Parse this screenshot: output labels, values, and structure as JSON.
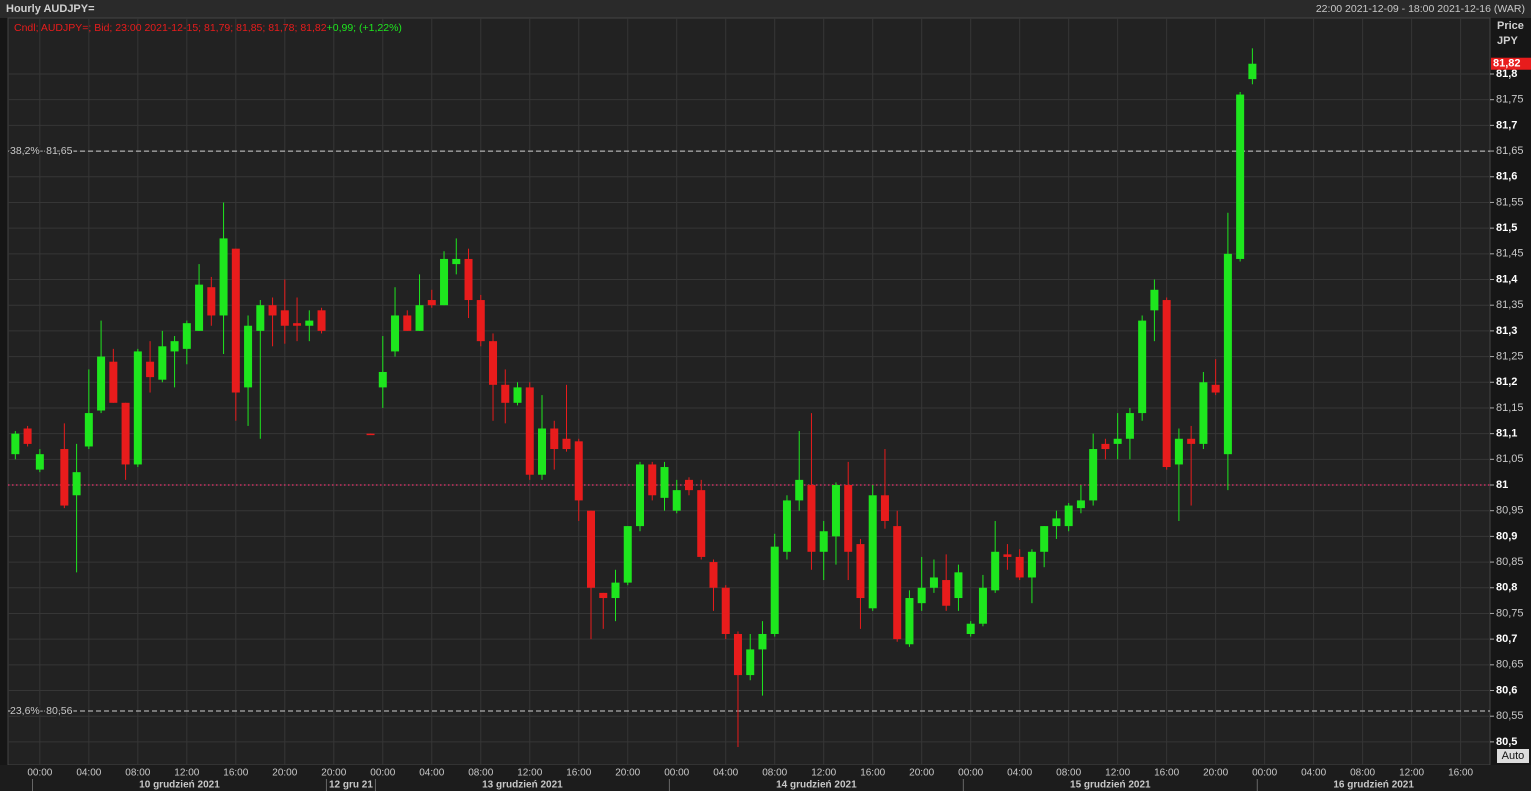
{
  "header": {
    "title": "Hourly AUDJPY=",
    "range": "22:00 2021-12-09 - 18:00 2021-12-16 (WAR)"
  },
  "chart_data": {
    "type": "candlestick",
    "legend_text": "Cndl; AUDJPY=; Bid; 23:00 2021-12-15; 81,79; 81,85; 81,78; 81,82",
    "change_text": "+0,99; (+1,22%)",
    "y_label": [
      "Price",
      "JPY"
    ],
    "auto_button": "Auto",
    "up_color": "#1ee61e",
    "down_color": "#e81c1c",
    "grid": true,
    "ylim": [
      80.455,
      81.909
    ],
    "yticks": [
      {
        "value": 80.5,
        "label": "80,5"
      },
      {
        "value": 80.55,
        "label": "80,55"
      },
      {
        "value": 80.6,
        "label": "80,6"
      },
      {
        "value": 80.65,
        "label": "80,65"
      },
      {
        "value": 80.7,
        "label": "80,7"
      },
      {
        "value": 80.75,
        "label": "80,75"
      },
      {
        "value": 80.8,
        "label": "80,8"
      },
      {
        "value": 80.85,
        "label": "80,85"
      },
      {
        "value": 80.9,
        "label": "80,9"
      },
      {
        "value": 80.95,
        "label": "80,95"
      },
      81,
      {
        "value": 81.05,
        "label": "81,05"
      },
      {
        "value": 81.1,
        "label": "81,1"
      },
      {
        "value": 81.15,
        "label": "81,15"
      },
      {
        "value": 81.2,
        "label": "81,2"
      },
      {
        "value": 81.25,
        "label": "81,25"
      },
      {
        "value": 81.3,
        "label": "81,3"
      },
      {
        "value": 81.35,
        "label": "81,35"
      },
      {
        "value": 81.4,
        "label": "81,4"
      },
      {
        "value": 81.45,
        "label": "81,45"
      },
      {
        "value": 81.5,
        "label": "81,5"
      },
      {
        "value": 81.55,
        "label": "81,55"
      },
      {
        "value": 81.6,
        "label": "81,6"
      },
      {
        "value": 81.65,
        "label": "81,65"
      },
      {
        "value": 81.7,
        "label": "81,7"
      },
      {
        "value": 81.75,
        "label": "81,75"
      },
      {
        "value": 81.8,
        "label": "81,8"
      }
    ],
    "price_tag": {
      "value": 81.82,
      "label": "81,82",
      "color": "#e81c1c"
    },
    "levels": [
      {
        "value": 81.65,
        "label": "38,2%- 81,65"
      },
      {
        "value": 80.56,
        "label": "23,6%- 80,56"
      }
    ],
    "ref_line": {
      "value": 81,
      "color": "#e8336e"
    },
    "date_labels": [
      "10 grudzień 2021",
      "12 gru 21",
      "13 grudzień 2021",
      "14 grudzień 2021",
      "15 grudzień 2021",
      "16 grudzień 2021"
    ],
    "categories": [
      null,
      null,
      "00:00",
      null,
      null,
      null,
      "04:00",
      null,
      null,
      null,
      "08:00",
      null,
      null,
      null,
      "12:00",
      null,
      null,
      null,
      "16:00",
      null,
      null,
      null,
      "20:00",
      null,
      null,
      null,
      "20:00",
      null,
      null,
      null,
      "00:00",
      null,
      null,
      null,
      "04:00",
      null,
      null,
      null,
      "08:00",
      null,
      null,
      null,
      "12:00",
      null,
      null,
      null,
      "16:00",
      null,
      null,
      null,
      "20:00",
      null,
      null,
      null,
      "00:00",
      null,
      null,
      null,
      "04:00",
      null,
      null,
      null,
      "08:00",
      null,
      null,
      null,
      "12:00",
      null,
      null,
      null,
      "16:00",
      null,
      null,
      null,
      "20:00",
      null,
      null,
      null,
      "00:00",
      null,
      null,
      null,
      "04:00",
      null,
      null,
      null,
      "08:00",
      null,
      null,
      null,
      "12:00",
      null,
      null,
      null,
      "16:00",
      null,
      null,
      null,
      "20:00",
      null,
      null,
      null,
      "00:00",
      null,
      null,
      null,
      "04:00",
      null,
      null,
      null,
      "08:00",
      null,
      null,
      null,
      "12:00",
      null,
      null,
      null,
      "16:00",
      null,
      null
    ],
    "open": [
      81.06,
      81.11,
      81.03,
      null,
      81.07,
      80.98,
      81.075,
      81.145,
      81.24,
      81.16,
      81.04,
      81.24,
      81.205,
      81.26,
      81.265,
      81.3,
      81.385,
      81.33,
      81.46,
      81.19,
      81.3,
      81.35,
      81.34,
      81.315,
      81.31,
      81.34,
      null,
      null,
      null,
      81.1,
      81.19,
      81.26,
      81.33,
      81.3,
      81.36,
      81.35,
      81.43,
      81.44,
      81.36,
      81.28,
      81.195,
      81.16,
      81.19,
      81.02,
      81.11,
      81.09,
      81.085,
      80.95,
      80.79,
      80.78,
      80.81,
      80.92,
      81.04,
      80.975,
      80.95,
      81.01,
      80.99,
      80.85,
      80.8,
      80.71,
      80.63,
      80.68,
      80.71,
      80.87,
      80.97,
      81.0,
      80.87,
      80.9,
      81.0,
      80.885,
      80.76,
      80.98,
      80.92,
      80.69,
      80.77,
      80.8,
      80.815,
      80.78,
      80.71,
      80.73,
      80.795,
      80.865,
      80.86,
      80.82,
      80.87,
      80.92,
      80.92,
      80.955,
      80.97,
      81.08,
      81.08,
      81.09,
      81.14,
      81.34,
      81.36,
      81.04,
      81.09,
      81.08,
      81.195,
      81.06,
      81.44,
      81.79,
      null,
      null,
      null,
      null,
      null,
      null,
      null,
      null,
      null,
      null,
      null,
      null,
      null,
      null,
      null,
      null,
      null,
      null,
      null
    ],
    "high": [
      81.105,
      81.115,
      81.07,
      null,
      81.12,
      81.08,
      81.225,
      81.32,
      81.265,
      81.16,
      81.265,
      81.28,
      81.3,
      81.29,
      81.32,
      81.43,
      81.405,
      81.55,
      81.46,
      81.33,
      81.36,
      81.365,
      81.4,
      81.365,
      81.34,
      81.345,
      null,
      null,
      null,
      81.1,
      81.29,
      81.385,
      81.34,
      81.41,
      81.38,
      81.455,
      81.48,
      81.46,
      81.37,
      81.295,
      81.225,
      81.2,
      81.2,
      81.175,
      81.125,
      81.195,
      81.09,
      80.95,
      80.79,
      80.835,
      80.92,
      81.045,
      81.045,
      81.045,
      81.01,
      81.015,
      81.01,
      80.855,
      80.805,
      80.715,
      80.71,
      80.735,
      80.905,
      80.98,
      81.105,
      81.14,
      80.93,
      81.005,
      81.045,
      80.895,
      81.0,
      81.07,
      80.95,
      80.795,
      80.86,
      80.855,
      80.865,
      80.845,
      80.735,
      80.825,
      80.93,
      80.885,
      80.875,
      80.875,
      80.92,
      80.95,
      80.965,
      81.0,
      81.1,
      81.09,
      81.14,
      81.15,
      81.33,
      81.4,
      81.365,
      81.11,
      81.115,
      81.22,
      81.245,
      81.53,
      81.765,
      81.85,
      null,
      null,
      null,
      null,
      null,
      null,
      null,
      null,
      null,
      null,
      null,
      null,
      null,
      null,
      null,
      null,
      null,
      null,
      null
    ],
    "low": [
      81.05,
      81.075,
      81.025,
      null,
      80.955,
      80.83,
      81.07,
      81.14,
      81.16,
      81.01,
      81.035,
      81.18,
      81.2,
      81.19,
      81.235,
      81.3,
      81.31,
      81.255,
      81.125,
      81.115,
      81.09,
      81.27,
      81.275,
      81.28,
      81.28,
      81.295,
      null,
      null,
      null,
      81.1,
      81.15,
      81.25,
      81.3,
      81.3,
      81.345,
      81.35,
      81.41,
      81.325,
      81.27,
      81.125,
      81.12,
      81.155,
      81.01,
      81.01,
      81.03,
      81.065,
      80.93,
      80.7,
      80.72,
      80.735,
      80.805,
      80.91,
      80.97,
      80.95,
      80.945,
      80.98,
      80.855,
      80.755,
      80.7,
      80.49,
      80.62,
      80.59,
      80.705,
      80.855,
      80.95,
      80.835,
      80.815,
      80.845,
      80.815,
      80.72,
      80.755,
      80.915,
      80.695,
      80.685,
      80.755,
      80.79,
      80.755,
      80.755,
      80.705,
      80.725,
      80.79,
      80.835,
      80.815,
      80.77,
      80.84,
      80.895,
      80.91,
      80.945,
      80.96,
      81.05,
      81.05,
      81.05,
      81.125,
      81.28,
      81.03,
      80.93,
      80.96,
      81.07,
      81.175,
      80.99,
      81.435,
      81.78,
      null,
      null,
      null,
      null,
      null,
      null,
      null,
      null,
      null,
      null,
      null,
      null,
      null,
      null,
      null,
      null,
      null,
      null,
      null
    ],
    "close": [
      81.1,
      81.08,
      81.06,
      null,
      80.96,
      81.025,
      81.14,
      81.25,
      81.16,
      81.04,
      81.26,
      81.21,
      81.27,
      81.28,
      81.315,
      81.39,
      81.33,
      81.48,
      81.18,
      81.31,
      81.35,
      81.33,
      81.31,
      81.31,
      81.32,
      81.3,
      null,
      null,
      null,
      81.1,
      81.22,
      81.33,
      81.3,
      81.35,
      81.35,
      81.44,
      81.44,
      81.36,
      81.28,
      81.195,
      81.16,
      81.19,
      81.02,
      81.11,
      81.07,
      81.07,
      80.97,
      80.8,
      80.78,
      80.81,
      80.92,
      81.04,
      80.98,
      81.035,
      80.99,
      80.99,
      80.86,
      80.8,
      80.71,
      80.63,
      80.68,
      80.71,
      80.88,
      80.97,
      81.01,
      80.87,
      80.91,
      81.0,
      80.87,
      80.78,
      80.98,
      80.93,
      80.7,
      80.78,
      80.8,
      80.82,
      80.765,
      80.83,
      80.73,
      80.8,
      80.87,
      80.86,
      80.82,
      80.87,
      80.92,
      80.935,
      80.96,
      80.97,
      81.07,
      81.07,
      81.09,
      81.14,
      81.32,
      81.38,
      81.035,
      81.09,
      81.08,
      81.2,
      81.18,
      81.45,
      81.76,
      81.82,
      null,
      null,
      null,
      null,
      null,
      null,
      null,
      null,
      null,
      null,
      null,
      null,
      null,
      null,
      null,
      null,
      null,
      null,
      null
    ]
  }
}
